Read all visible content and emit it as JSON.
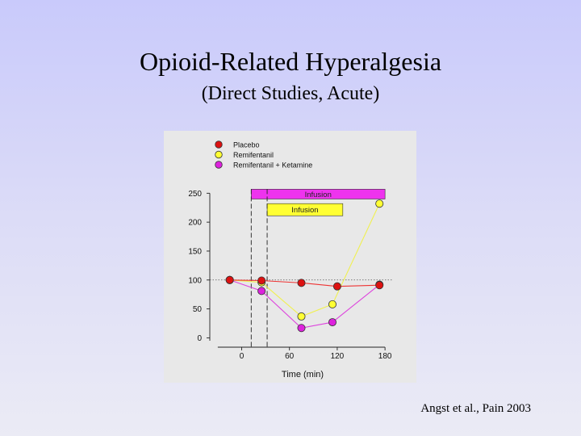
{
  "slide": {
    "title": "Opioid-Related Hyperalgesia",
    "subtitle": "(Direct Studies, Acute)",
    "citation": "Angst et al., Pain 2003"
  },
  "chart_data": {
    "type": "line",
    "xlabel": "Time (min)",
    "ylabel": "",
    "x_ticks": [
      0,
      60,
      120,
      180
    ],
    "y_ticks": [
      0,
      50,
      100,
      150,
      200,
      250
    ],
    "xlim": [
      -40,
      190
    ],
    "ylim": [
      -5,
      270
    ],
    "reference_line": 100,
    "grid": false,
    "legend_position": "top-left",
    "series": [
      {
        "name": "Placebo",
        "color": "#dd1111",
        "line_color": "#ee3333",
        "points": [
          {
            "x": -15,
            "y": 100
          },
          {
            "x": 25,
            "y": 99
          },
          {
            "x": 75,
            "y": 95
          },
          {
            "x": 120,
            "y": 89
          },
          {
            "x": 173,
            "y": 91
          }
        ]
      },
      {
        "name": "Remifentanil",
        "color": "#ffff33",
        "line_color": "#f0f050",
        "points": [
          {
            "x": -15,
            "y": 100
          },
          {
            "x": 25,
            "y": 96
          },
          {
            "x": 75,
            "y": 37
          },
          {
            "x": 114,
            "y": 58
          },
          {
            "x": 173,
            "y": 232
          }
        ]
      },
      {
        "name": "Remifentanil + Ketamine",
        "color": "#dd22dd",
        "line_color": "#dd44dd",
        "points": [
          {
            "x": -15,
            "y": 100
          },
          {
            "x": 25,
            "y": 81
          },
          {
            "x": 75,
            "y": 17
          },
          {
            "x": 114,
            "y": 27
          },
          {
            "x": 173,
            "y": 92
          }
        ]
      }
    ],
    "annotations": [
      {
        "label": "Infusion",
        "x_start": 12,
        "x_end": 180,
        "y_low": 240,
        "y_high": 257,
        "fill": "#ee33ee",
        "group": "Remifentanil + Ketamine"
      },
      {
        "label": "Infusion",
        "x_start": 32,
        "x_end": 127,
        "y_low": 211,
        "y_high": 232,
        "fill": "#ffff33",
        "group": "Remifentanil"
      }
    ],
    "vertical_markers": [
      12,
      32
    ]
  }
}
